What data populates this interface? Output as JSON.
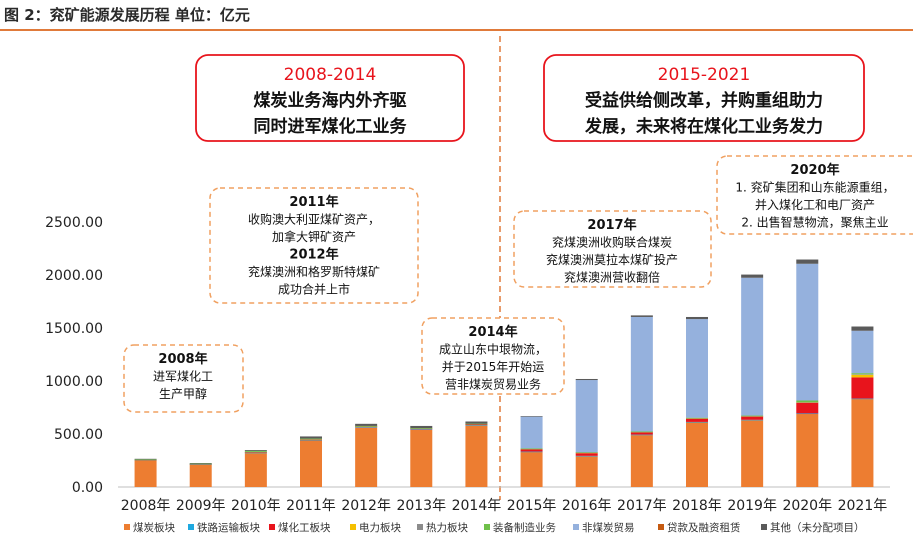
{
  "figure": {
    "title": "图 2：兖矿能源发展历程 单位：亿元"
  },
  "chart_data": {
    "type": "bar",
    "stacked": true,
    "categories": [
      "2008年",
      "2009年",
      "2010年",
      "2011年",
      "2012年",
      "2013年",
      "2014年",
      "2015年",
      "2016年",
      "2017年",
      "2018年",
      "2019年",
      "2020年",
      "2021年"
    ],
    "ylim": [
      0,
      2500
    ],
    "yticks": [
      "0.00",
      "500.00",
      "1000.00",
      "1500.00",
      "2000.00",
      "2500.00"
    ],
    "grid": false,
    "legend_position": "bottom",
    "series": [
      {
        "name": "煤炭板块",
        "color": "#ed7d31",
        "values": [
          250,
          210,
          320,
          440,
          560,
          540,
          580,
          330,
          290,
          490,
          610,
          630,
          690,
          830
        ]
      },
      {
        "name": "铁路运输板块",
        "color": "#1fa9e0",
        "values": [
          4,
          4,
          4,
          4,
          4,
          4,
          4,
          4,
          4,
          4,
          4,
          4,
          4,
          4
        ]
      },
      {
        "name": "煤化工板块",
        "color": "#e8141c",
        "values": [
          2,
          2,
          3,
          4,
          6,
          6,
          8,
          20,
          25,
          20,
          30,
          30,
          100,
          200
        ]
      },
      {
        "name": "电力板块",
        "color": "#f5c000",
        "values": [
          2,
          2,
          3,
          3,
          3,
          3,
          3,
          5,
          5,
          5,
          5,
          5,
          5,
          25
        ]
      },
      {
        "name": "热力板块",
        "color": "#8c8c8c",
        "values": [
          1,
          1,
          1,
          1,
          1,
          1,
          1,
          2,
          2,
          2,
          2,
          2,
          2,
          5
        ]
      },
      {
        "name": "装备制造业务",
        "color": "#6fc04a",
        "values": [
          2,
          2,
          10,
          5,
          2,
          2,
          2,
          3,
          3,
          3,
          3,
          3,
          15,
          10
        ]
      },
      {
        "name": "非煤炭贸易",
        "color": "#95b1dd",
        "values": [
          0,
          0,
          0,
          0,
          0,
          0,
          0,
          300,
          680,
          1080,
          930,
          1300,
          1290,
          400
        ]
      },
      {
        "name": "贷款及融资租赁",
        "color": "#c55a11",
        "values": [
          0,
          0,
          0,
          0,
          0,
          0,
          0,
          0,
          0,
          0,
          0,
          0,
          0,
          0
        ]
      },
      {
        "name": "其他（未分配项目）",
        "color": "#5a5a5a",
        "values": [
          5,
          5,
          8,
          20,
          20,
          20,
          20,
          5,
          10,
          15,
          20,
          30,
          40,
          40
        ]
      }
    ],
    "annotations": [
      {
        "id": "era1",
        "lines": [
          "2008-2014",
          "煤炭业务海内外齐驱",
          "同时进军煤化工业务"
        ]
      },
      {
        "id": "era2",
        "lines": [
          "2015-2021",
          "受益供给侧改革，并购重组助力",
          "发展，未来将在煤化工业务发力"
        ]
      },
      {
        "id": "n2008",
        "lines": [
          "2008年",
          "进军煤化工",
          "生产甲醇"
        ]
      },
      {
        "id": "n2011",
        "lines": [
          "2011年",
          "收购澳大利亚煤矿资产，",
          "加拿大钾矿资产",
          "2012年",
          "兖煤澳洲和格罗斯特煤矿",
          "成功合并上市"
        ]
      },
      {
        "id": "n2014",
        "lines": [
          "2014年",
          "成立山东中垠物流，",
          "并于2015年开始运",
          "营非煤炭贸易业务"
        ]
      },
      {
        "id": "n2017",
        "lines": [
          "2017年",
          "兖煤澳洲收购联合煤炭",
          "兖煤澳洲莫拉本煤矿投产",
          "兖煤澳洲营收翻倍"
        ]
      },
      {
        "id": "n2020",
        "lines": [
          "2020年",
          "1. 兖矿集团和山东能源重组，",
          "并入煤化工和电厂资产",
          "2. 出售智慧物流，聚焦主业"
        ]
      }
    ]
  }
}
